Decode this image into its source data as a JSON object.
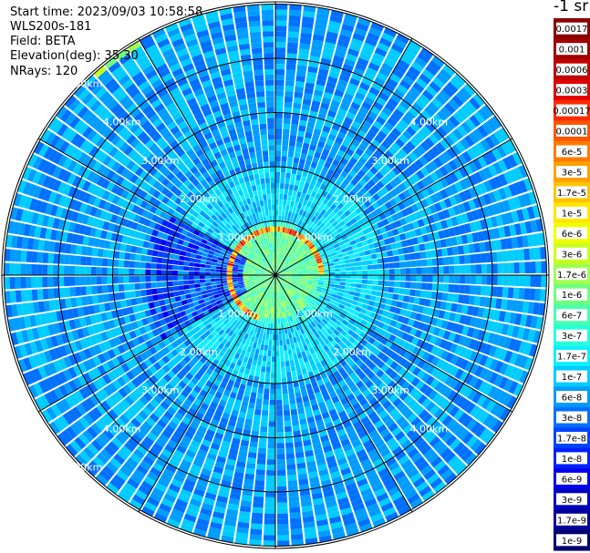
{
  "info": {
    "start_time": "Start time: 2023/09/03 10:58:58",
    "instrument": "WLS200s-181",
    "field": "Field: BETA",
    "elevation": "Elevation(deg): 35.30",
    "nrays": "NRays: 120"
  },
  "colorbar": {
    "unit": "-1 sr",
    "ticks": [
      "0.0017",
      "0.001",
      "0.0006",
      "0.0003",
      "0.00017",
      "0.0001",
      "6e-5",
      "3e-5",
      "1.7e-5",
      "1e-5",
      "6e-6",
      "3e-6",
      "1.7e-6",
      "1e-6",
      "6e-7",
      "3e-7",
      "1.7e-7",
      "1e-7",
      "6e-8",
      "3e-8",
      "1.7e-8",
      "1e-8",
      "6e-9",
      "3e-9",
      "1.7e-9",
      "1e-9"
    ],
    "colors": [
      "#8a0000",
      "#a00000",
      "#c00000",
      "#e00000",
      "#ff2a00",
      "#ff5500",
      "#ff7a00",
      "#ffa000",
      "#ffc400",
      "#ffe600",
      "#f0ff00",
      "#c8ff20",
      "#a0ff50",
      "#70ff80",
      "#48ffb0",
      "#28ffd8",
      "#10eeff",
      "#00ccff",
      "#009cff",
      "#0070ff",
      "#0044ff",
      "#0020ff",
      "#0000ee",
      "#0000c0",
      "#000098",
      "#000070"
    ]
  },
  "chart_data": {
    "type": "heatmap",
    "projection": "polar-ppi",
    "field": "BETA",
    "nrays": 120,
    "elevation_deg": 35.3,
    "range_rings_km": [
      1,
      2,
      3,
      4,
      5
    ],
    "range_labels": [
      "1.00km",
      "2.00km",
      "3.00km",
      "4.00km",
      "5.00km"
    ],
    "radial_lines_deg": [
      0,
      30,
      60,
      90,
      120,
      150,
      180,
      210,
      240,
      270,
      300,
      330
    ],
    "features": {
      "aerosol_ring_km": 0.85,
      "inner_high_beta_km": [
        0,
        1.0
      ],
      "arc_high_beta": {
        "range_km": 5.0,
        "azimuth_deg": [
          318,
          330
        ]
      },
      "western_low_beta_sector_deg": [
        240,
        300
      ]
    }
  }
}
